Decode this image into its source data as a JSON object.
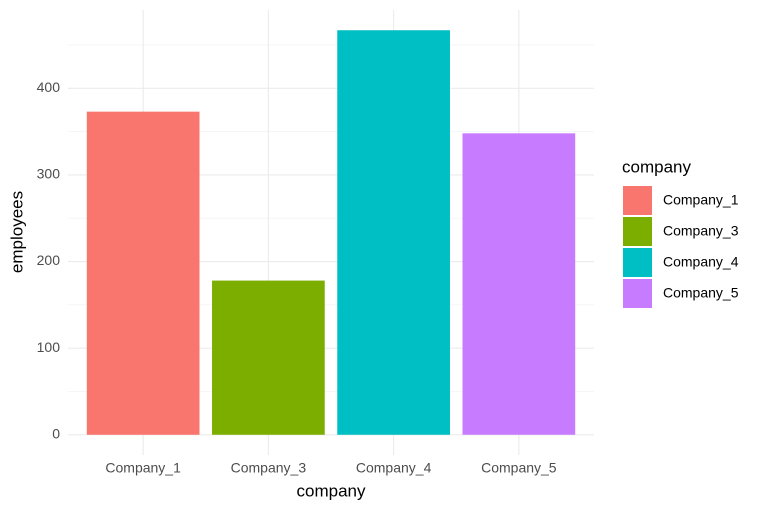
{
  "chart_data": {
    "type": "bar",
    "x_label": "company",
    "y_label": "employees",
    "legend_title": "company",
    "categories": [
      "Company_1",
      "Company_3",
      "Company_4",
      "Company_5"
    ],
    "values": [
      373,
      178,
      467,
      348
    ],
    "colors": [
      "#F8766D",
      "#7CAE00",
      "#00BFC4",
      "#C77CFF"
    ],
    "ylim": [
      -23.35,
      490.35
    ],
    "yticks": [
      0,
      100,
      200,
      300,
      400
    ],
    "yminor": [
      50,
      150,
      250,
      350,
      450
    ],
    "grid": true,
    "legend": "right"
  }
}
